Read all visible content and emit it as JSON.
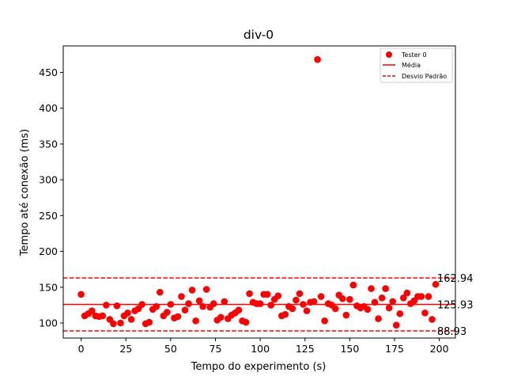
{
  "chart_data": {
    "type": "scatter",
    "title": "div-0",
    "xlabel": "Tempo do experimento (s)",
    "ylabel": "Tempo até conexão (ms)",
    "xlim": [
      -10,
      209
    ],
    "ylim": [
      79,
      487
    ],
    "x_ticks": [
      0,
      25,
      50,
      75,
      100,
      125,
      150,
      175,
      200
    ],
    "y_ticks": [
      100,
      150,
      200,
      250,
      300,
      350,
      400,
      450
    ],
    "grid": false,
    "legend_position": "top-right",
    "colors": {
      "series": "#ff0000",
      "axes": "#000000"
    },
    "series": [
      {
        "name": "Tester 0",
        "marker": "circle",
        "points": [
          [
            0,
            140
          ],
          [
            2,
            110
          ],
          [
            4,
            113
          ],
          [
            6,
            117
          ],
          [
            8,
            110
          ],
          [
            10,
            109
          ],
          [
            12,
            110
          ],
          [
            14,
            125
          ],
          [
            16,
            105
          ],
          [
            18,
            99
          ],
          [
            20,
            124
          ],
          [
            22,
            100
          ],
          [
            24,
            110
          ],
          [
            26,
            114
          ],
          [
            28,
            105
          ],
          [
            30,
            117
          ],
          [
            32,
            120
          ],
          [
            34,
            126
          ],
          [
            36,
            99
          ],
          [
            38,
            101
          ],
          [
            40,
            119
          ],
          [
            42,
            123
          ],
          [
            44,
            143
          ],
          [
            46,
            110
          ],
          [
            48,
            115
          ],
          [
            50,
            126
          ],
          [
            52,
            107
          ],
          [
            54,
            109
          ],
          [
            56,
            137
          ],
          [
            58,
            118
          ],
          [
            60,
            127
          ],
          [
            62,
            146
          ],
          [
            64,
            103
          ],
          [
            66,
            131
          ],
          [
            68,
            123
          ],
          [
            70,
            147
          ],
          [
            72,
            122
          ],
          [
            74,
            127
          ],
          [
            76,
            104
          ],
          [
            78,
            108
          ],
          [
            80,
            130
          ],
          [
            82,
            106
          ],
          [
            84,
            111
          ],
          [
            86,
            114
          ],
          [
            88,
            118
          ],
          [
            90,
            103
          ],
          [
            92,
            101
          ],
          [
            94,
            141
          ],
          [
            96,
            129
          ],
          [
            98,
            127
          ],
          [
            100,
            127
          ],
          [
            102,
            140
          ],
          [
            104,
            140
          ],
          [
            106,
            125
          ],
          [
            108,
            133
          ],
          [
            110,
            138
          ],
          [
            112,
            110
          ],
          [
            114,
            112
          ],
          [
            116,
            123
          ],
          [
            118,
            120
          ],
          [
            120,
            132
          ],
          [
            122,
            141
          ],
          [
            124,
            126
          ],
          [
            126,
            117
          ],
          [
            128,
            129
          ],
          [
            130,
            130
          ],
          [
            132,
            468
          ],
          [
            134,
            137
          ],
          [
            136,
            103
          ],
          [
            138,
            127
          ],
          [
            140,
            125
          ],
          [
            142,
            120
          ],
          [
            144,
            139
          ],
          [
            146,
            134
          ],
          [
            148,
            111
          ],
          [
            150,
            133
          ],
          [
            152,
            153
          ],
          [
            154,
            124
          ],
          [
            156,
            121
          ],
          [
            158,
            123
          ],
          [
            160,
            119
          ],
          [
            162,
            148
          ],
          [
            164,
            129
          ],
          [
            166,
            106
          ],
          [
            168,
            135
          ],
          [
            170,
            148
          ],
          [
            172,
            121
          ],
          [
            174,
            130
          ],
          [
            176,
            97
          ],
          [
            178,
            113
          ],
          [
            180,
            135
          ],
          [
            182,
            142
          ],
          [
            184,
            127
          ],
          [
            186,
            131
          ],
          [
            188,
            137
          ],
          [
            190,
            137
          ],
          [
            192,
            114
          ],
          [
            194,
            137
          ],
          [
            196,
            105
          ],
          [
            198,
            154
          ]
        ]
      },
      {
        "name": "Média",
        "style": "solid",
        "value": 125.93
      },
      {
        "name": "Desvio Padrão",
        "style": "dashed",
        "values": [
          162.94,
          88.93
        ]
      }
    ],
    "annotations": [
      "162.94",
      "125.93",
      "88.93"
    ]
  }
}
